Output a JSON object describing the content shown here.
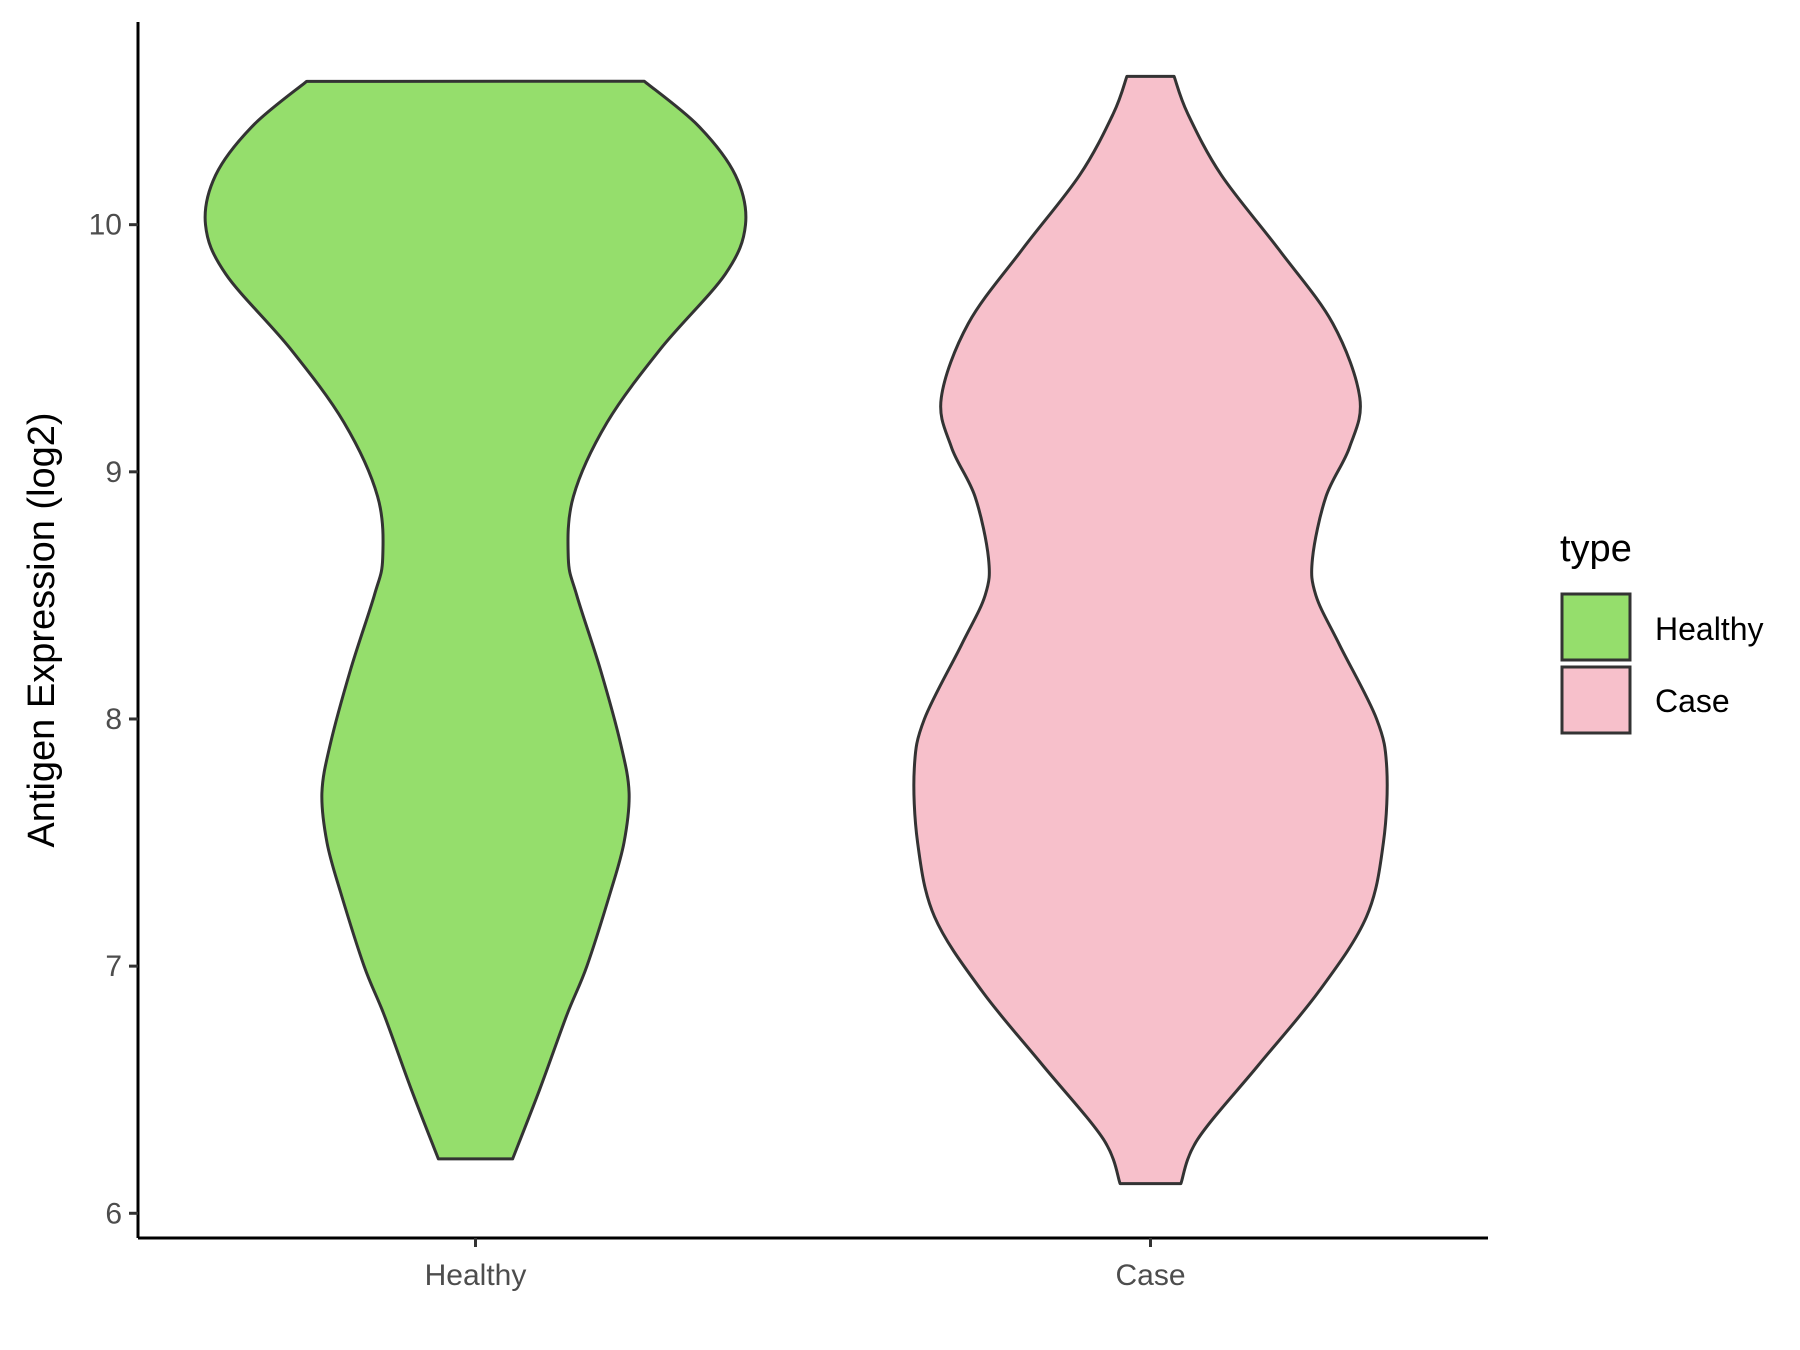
{
  "chart_data": {
    "type": "violin",
    "xlabel": "",
    "ylabel": "Antigen Expression (log2)",
    "ylim": [
      5.9,
      10.82
    ],
    "yticks": [
      "6",
      "7",
      "8",
      "9",
      "10"
    ],
    "categories": [
      "Healthy",
      "Case"
    ],
    "legend": {
      "title": "type",
      "position": "right",
      "entries": [
        {
          "label": "Healthy",
          "color": "#95DE6C"
        },
        {
          "label": "Case",
          "color": "#F7C0CB"
        }
      ]
    },
    "grid": false,
    "series": [
      {
        "name": "Healthy",
        "color": "#95DE6C",
        "min": 6.22,
        "max": 10.58,
        "density_profile": [
          {
            "y": 6.22,
            "w": 0.11
          },
          {
            "y": 6.5,
            "w": 0.19
          },
          {
            "y": 6.8,
            "w": 0.27
          },
          {
            "y": 7.0,
            "w": 0.33
          },
          {
            "y": 7.3,
            "w": 0.4
          },
          {
            "y": 7.5,
            "w": 0.44
          },
          {
            "y": 7.7,
            "w": 0.455
          },
          {
            "y": 7.9,
            "w": 0.43
          },
          {
            "y": 8.2,
            "w": 0.37
          },
          {
            "y": 8.5,
            "w": 0.3
          },
          {
            "y": 8.65,
            "w": 0.275
          },
          {
            "y": 8.9,
            "w": 0.29
          },
          {
            "y": 9.2,
            "w": 0.39
          },
          {
            "y": 9.5,
            "w": 0.55
          },
          {
            "y": 9.8,
            "w": 0.74
          },
          {
            "y": 10.0,
            "w": 0.8
          },
          {
            "y": 10.2,
            "w": 0.77
          },
          {
            "y": 10.4,
            "w": 0.66
          },
          {
            "y": 10.58,
            "w": 0.5
          }
        ]
      },
      {
        "name": "Case",
        "color": "#F7C0CB",
        "min": 6.12,
        "max": 10.6,
        "density_profile": [
          {
            "y": 6.12,
            "w": 0.09
          },
          {
            "y": 6.3,
            "w": 0.14
          },
          {
            "y": 6.6,
            "w": 0.32
          },
          {
            "y": 6.9,
            "w": 0.5
          },
          {
            "y": 7.2,
            "w": 0.64
          },
          {
            "y": 7.5,
            "w": 0.69
          },
          {
            "y": 7.8,
            "w": 0.7
          },
          {
            "y": 8.0,
            "w": 0.67
          },
          {
            "y": 8.3,
            "w": 0.56
          },
          {
            "y": 8.5,
            "w": 0.49
          },
          {
            "y": 8.65,
            "w": 0.48
          },
          {
            "y": 8.9,
            "w": 0.52
          },
          {
            "y": 9.1,
            "w": 0.59
          },
          {
            "y": 9.3,
            "w": 0.62
          },
          {
            "y": 9.6,
            "w": 0.54
          },
          {
            "y": 9.9,
            "w": 0.38
          },
          {
            "y": 10.2,
            "w": 0.21
          },
          {
            "y": 10.45,
            "w": 0.11
          },
          {
            "y": 10.6,
            "w": 0.07
          }
        ]
      }
    ]
  }
}
